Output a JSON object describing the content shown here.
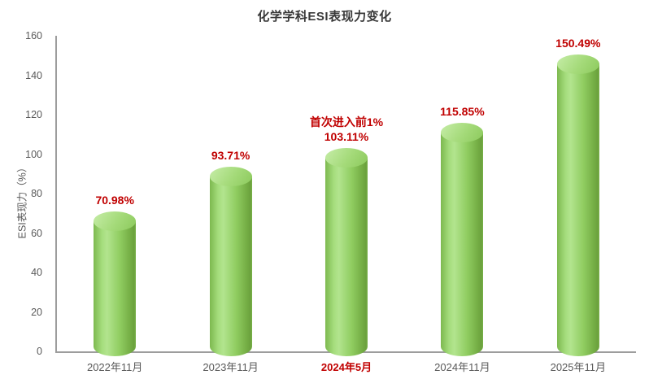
{
  "chart_data": {
    "type": "bar",
    "subtype": "cylinder-3d",
    "title": "化学学科ESI表现力变化",
    "xlabel": "",
    "ylabel": "ESI表现力（%）",
    "categories": [
      "2022年11月",
      "2023年11月",
      "2024年5月",
      "2024年11月",
      "2025年11月"
    ],
    "values": [
      70.98,
      93.71,
      103.11,
      115.85,
      150.49
    ],
    "value_labels": [
      "70.98%",
      "93.71%",
      "103.11%",
      "115.85%",
      "150.49%"
    ],
    "annotations": [
      {
        "index": 2,
        "text": "首次进入前1%"
      }
    ],
    "highlight_category_index": 2,
    "ylim": [
      0,
      160
    ],
    "y_ticks": [
      0,
      20,
      40,
      60,
      80,
      100,
      120,
      140,
      160
    ],
    "grid": false,
    "legend": false,
    "colors": {
      "bar_mid": "#92d050",
      "bar_light": "#b2e48e",
      "bar_dark": "#6ba13d",
      "data_label": "#c00000",
      "highlight_tick": "#c00000",
      "axis_line": "#9d9d9d",
      "tick_text": "#595959",
      "title_text": "#383838"
    }
  }
}
